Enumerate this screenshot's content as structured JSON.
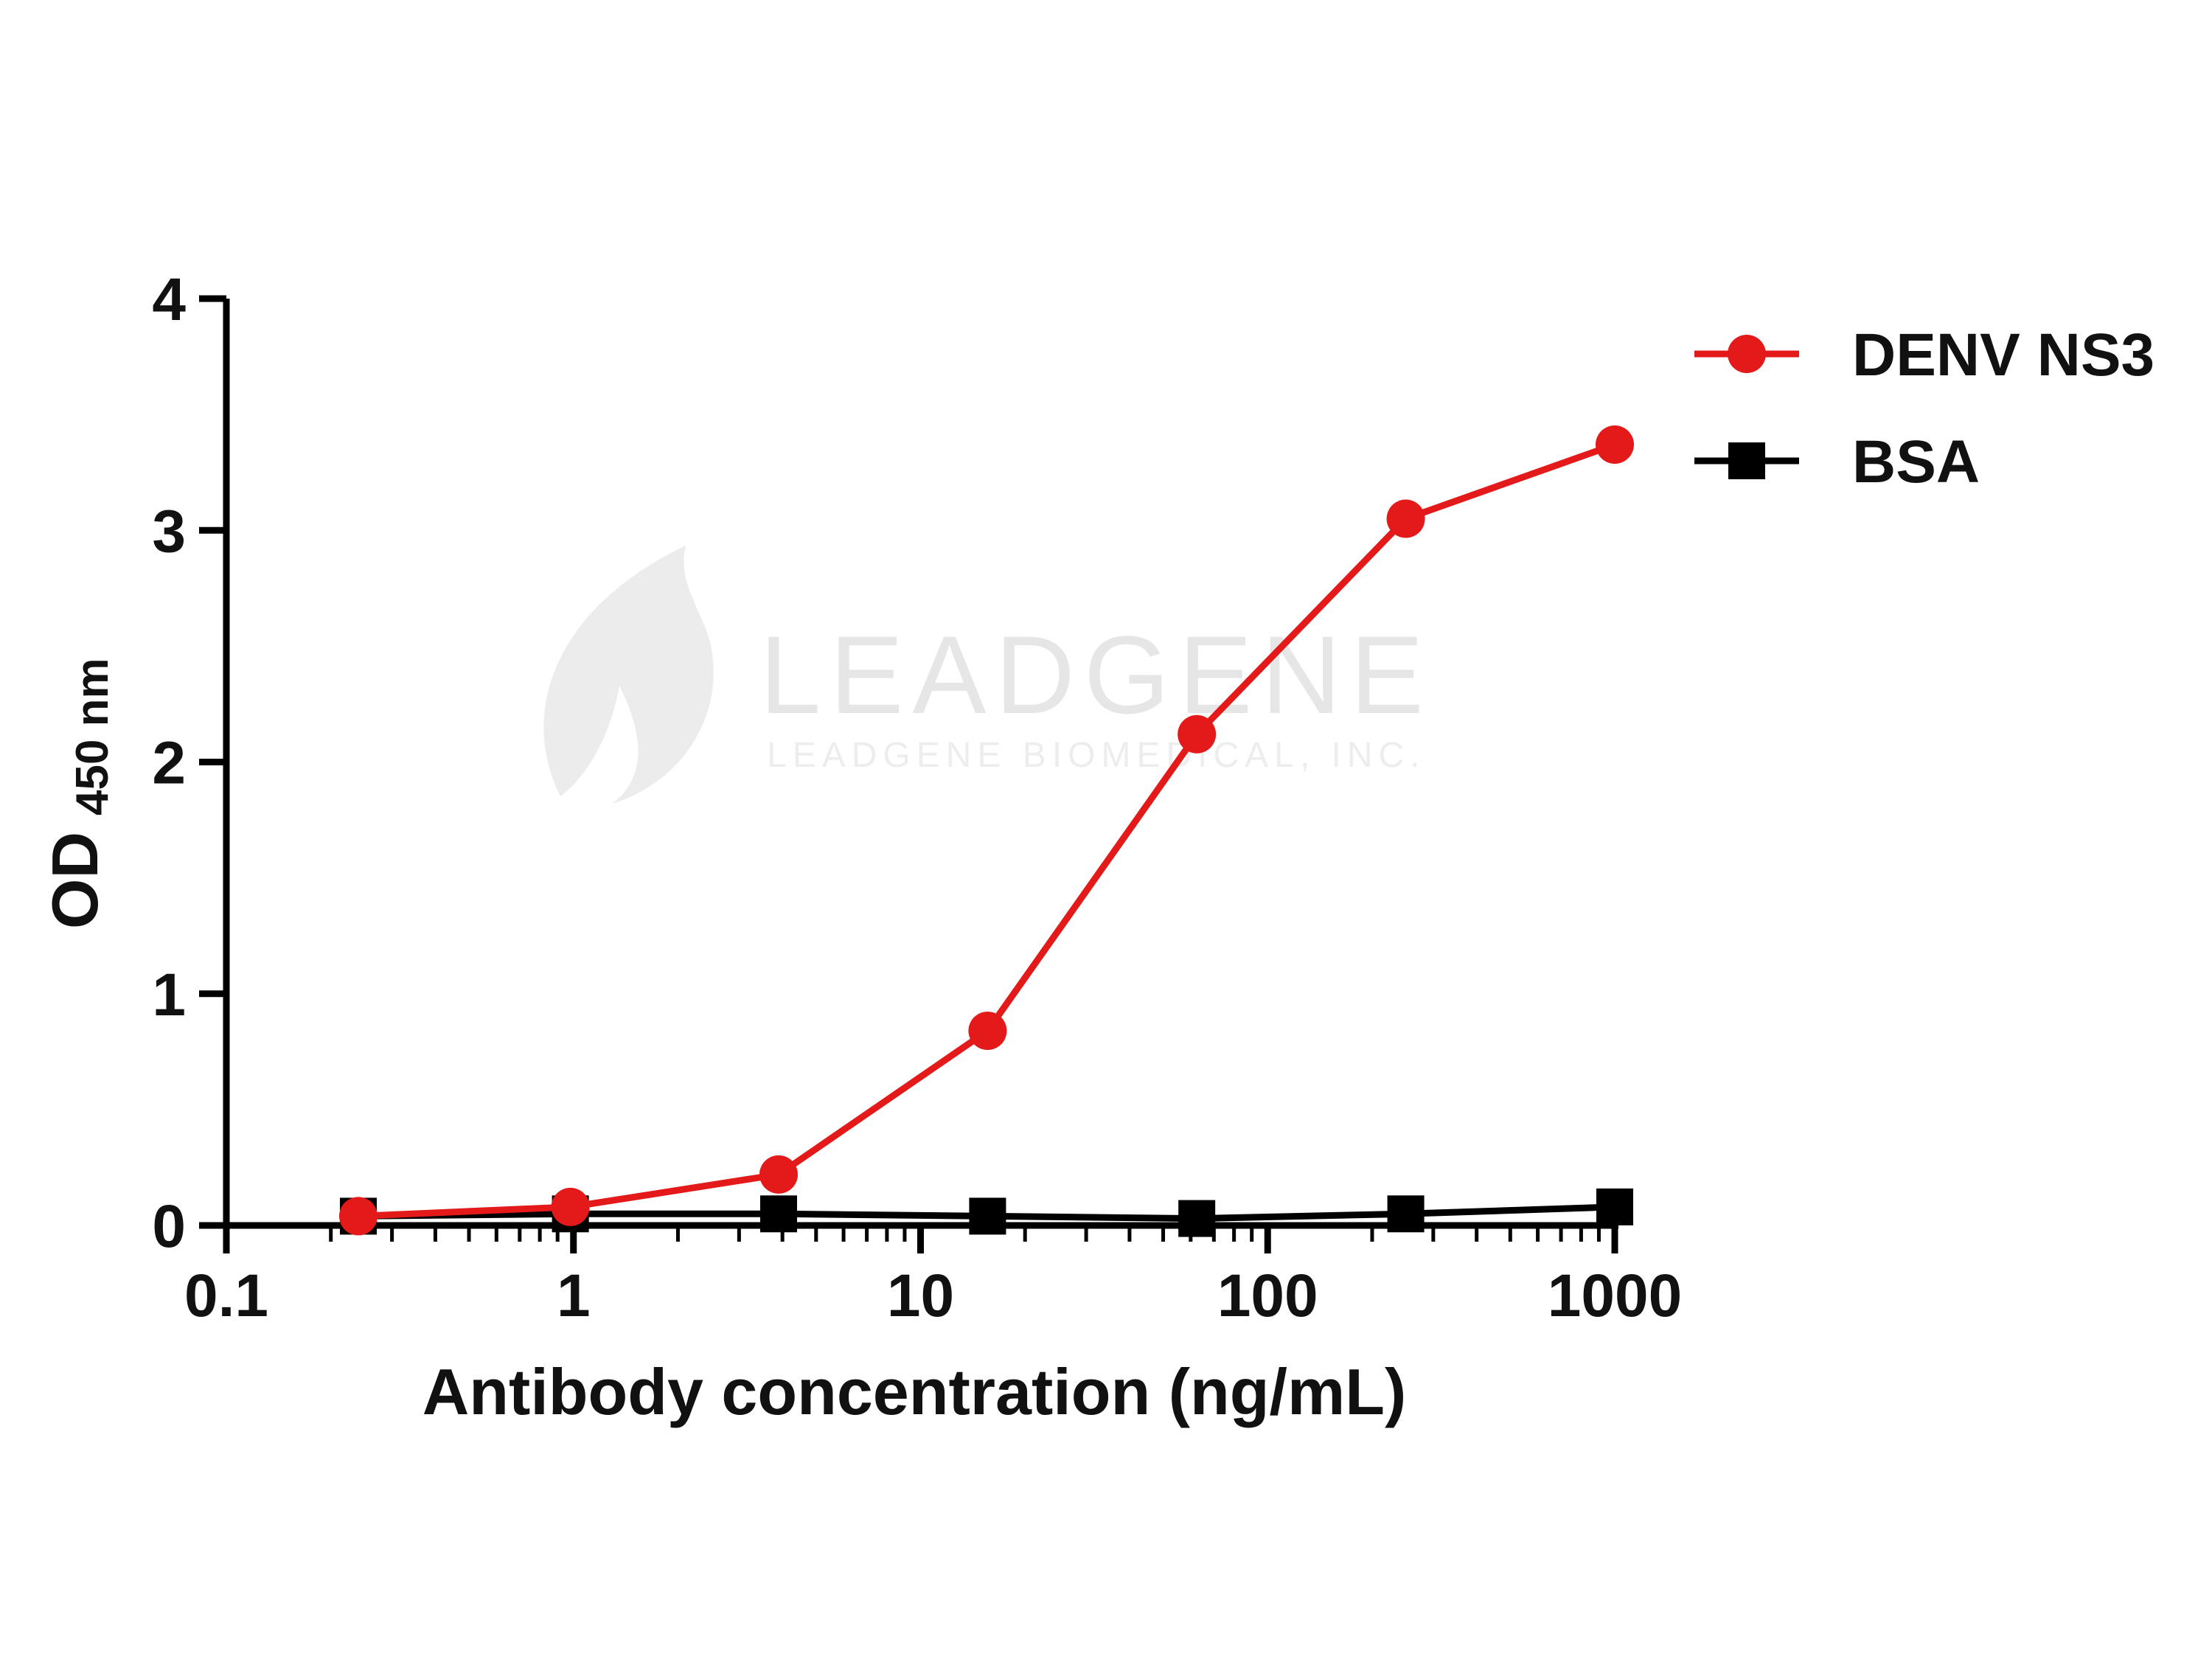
{
  "watermark": {
    "brand": "LEADGENE",
    "company": "LEADGENE BIOMEDICAL, INC."
  },
  "chart_data": {
    "type": "line",
    "xlabel": "Antibody concentration (ng/mL)",
    "ylabel_main": "OD",
    "ylabel_sub": "450 nm",
    "x_scale": "log",
    "xlim": [
      0.1,
      1000
    ],
    "ylim": [
      0,
      4
    ],
    "x_ticks": [
      0.1,
      1,
      10,
      100,
      1000
    ],
    "x_tick_labels": [
      "0.1",
      "1",
      "10",
      "100",
      "1000"
    ],
    "y_ticks": [
      0,
      1,
      2,
      3,
      4
    ],
    "y_tick_labels": [
      "0",
      "1",
      "2",
      "3",
      "4"
    ],
    "grid": false,
    "legend_position": "top-right",
    "x": [
      0.24,
      0.98,
      3.9,
      15.6,
      62.5,
      250,
      1000
    ],
    "series": [
      {
        "name": "DENV NS3",
        "color": "#e41a1a",
        "marker": "circle",
        "values": [
          0.04,
          0.08,
          0.22,
          0.84,
          2.12,
          3.05,
          3.37
        ]
      },
      {
        "name": "BSA",
        "color": "#000000",
        "marker": "square",
        "values": [
          0.04,
          0.05,
          0.05,
          0.04,
          0.03,
          0.05,
          0.08
        ]
      }
    ]
  }
}
